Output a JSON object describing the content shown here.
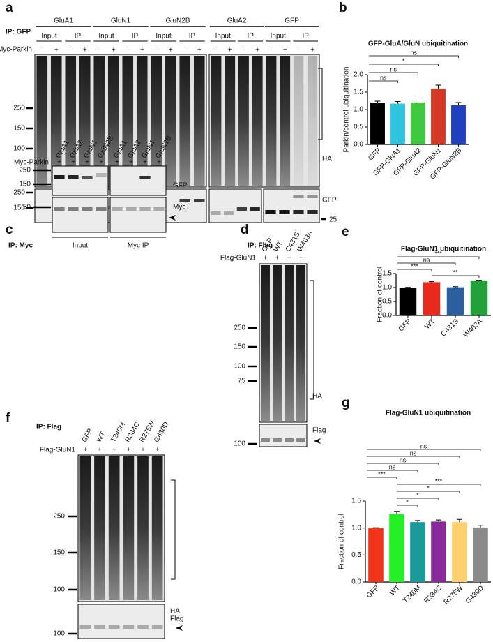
{
  "panel_labels": [
    "a",
    "b",
    "c",
    "d",
    "e",
    "f",
    "g"
  ],
  "blot_a": {
    "ip": "IP: GFP",
    "groups": [
      "GluA1",
      "GluN1",
      "GluN2B",
      "GluA2",
      "GFP"
    ],
    "fractions": [
      "Input",
      "IP",
      "Input",
      "IP",
      "Input",
      "IP",
      "Input",
      "IP",
      "Input",
      "IP"
    ],
    "treatment": "Myc-Parkin",
    "lanes": [
      "-",
      "+",
      "-",
      "+",
      "-",
      "+",
      "-",
      "+",
      "-",
      "+",
      "-",
      "+",
      "-",
      "+",
      "-",
      "+",
      "-",
      "+",
      "-",
      "+"
    ],
    "markers_top": [
      "250",
      "150",
      "100"
    ],
    "markers_bottom": [
      "250",
      "150"
    ],
    "marker_right": "25",
    "labels": [
      "HA",
      "GFP"
    ]
  },
  "blot_c": {
    "ip": "IP: Myc",
    "lanes": [
      "GluA1",
      "GluA2",
      "GluN1",
      "GluN2B",
      "GluA1",
      "GluA2",
      "GluN1",
      "GluN2B"
    ],
    "treatment": "Myc-Parkin",
    "signs": [
      "+",
      "+",
      "+",
      "+",
      "+",
      "+",
      "+",
      "+"
    ],
    "markers": [
      "250",
      "150",
      "50"
    ],
    "labels": [
      "GFP",
      "Myc"
    ],
    "fractions": [
      "Input",
      "Myc IP"
    ]
  },
  "blot_d": {
    "ip": "IP: Flag",
    "lanes": [
      "GFP",
      "WT",
      "C431S",
      "W403A"
    ],
    "treatment": "Flag-GluN1",
    "signs": [
      "+",
      "+",
      "+",
      "+"
    ],
    "markers": [
      "250",
      "150",
      "100",
      "75"
    ],
    "labels": [
      "HA",
      "Flag"
    ],
    "marker_bottom": "100"
  },
  "blot_f": {
    "ip": "IP: Flag",
    "lanes": [
      "GFP",
      "WT",
      "T240M",
      "R334C",
      "R275W",
      "G430D"
    ],
    "treatment": "Flag-GluN1",
    "signs": [
      "+",
      "+",
      "+",
      "+",
      "+",
      "+"
    ],
    "markers": [
      "250",
      "150",
      "100"
    ],
    "labels": [
      "HA",
      "Flag"
    ],
    "marker_bottom": "100"
  },
  "chart_data": [
    {
      "type": "bar",
      "title": "GFP-GluA/GluN ubiquitination",
      "ylabel": "Parkin/control ubiquitination",
      "categories": [
        "GFP",
        "GFP-GluA1",
        "GFP-GluA2",
        "GFP-GluN1",
        "GFP-GluN2B"
      ],
      "values": [
        1.2,
        1.17,
        1.2,
        1.6,
        1.12
      ],
      "errors": [
        0.04,
        0.06,
        0.07,
        0.1,
        0.08
      ],
      "colors": [
        "#000000",
        "#2ec4e0",
        "#3ec93e",
        "#d23a26",
        "#2040c0"
      ],
      "ylim": [
        0,
        2.0
      ],
      "yticks": [
        {
          "value": 0,
          "label": "0.0"
        },
        0.5,
        {
          "value": 1,
          "label": "1.0"
        },
        1.5,
        {
          "value": 2,
          "label": "2.0"
        }
      ],
      "significance": [
        {
          "from": 0,
          "to": 4,
          "label": "ns"
        },
        {
          "from": 0,
          "to": 3,
          "label": "*"
        },
        {
          "from": 0,
          "to": 2,
          "label": "ns"
        },
        {
          "from": 0,
          "to": 1,
          "label": "ns"
        }
      ]
    },
    {
      "type": "bar",
      "title": "Flag-GluN1 ubiquitination",
      "ylabel": "Fraction of control",
      "categories": [
        "GFP",
        "WT",
        "C431S",
        "W403A"
      ],
      "values": [
        1.0,
        1.19,
        1.01,
        1.25
      ],
      "errors": [
        0.005,
        0.02,
        0.02,
        0.01
      ],
      "colors": [
        "#000000",
        "#e8291c",
        "#2a5fa0",
        "#22a03a"
      ],
      "ylim": [
        0,
        1.5
      ],
      "yticks": [
        {
          "value": 0,
          "label": "0.0"
        },
        0.5,
        {
          "value": 1,
          "label": "1.0"
        },
        1.5
      ],
      "significance": [
        {
          "from": 0,
          "to": 3,
          "label": "***"
        },
        {
          "from": 0,
          "to": 2,
          "label": "ns"
        },
        {
          "from": 0,
          "to": 1,
          "label": "***"
        },
        {
          "from": 1,
          "to": 3,
          "label": "**"
        }
      ]
    },
    {
      "type": "bar",
      "title": "Flag-GluN1 ubiquitination",
      "ylabel": "Fraction of control",
      "categories": [
        "GFP",
        "WT",
        "T240M",
        "R334C",
        "R275W",
        "G430D"
      ],
      "values": [
        1.0,
        1.26,
        1.11,
        1.12,
        1.11,
        1.01
      ],
      "errors": [
        0.005,
        0.05,
        0.03,
        0.03,
        0.05,
        0.04
      ],
      "colors": [
        "#f2331a",
        "#22f022",
        "#1a9a9a",
        "#8a2a9a",
        "#ffd070",
        "#8a8a8a"
      ],
      "ylim": [
        0,
        1.5
      ],
      "yticks": [
        {
          "value": 0,
          "label": "0.0"
        },
        0.5,
        {
          "value": 1,
          "label": "1.0"
        },
        1.5
      ],
      "significance": [
        {
          "from": 0,
          "to": 5,
          "label": "ns"
        },
        {
          "from": 0,
          "to": 4,
          "label": "ns"
        },
        {
          "from": 0,
          "to": 3,
          "label": "ns"
        },
        {
          "from": 0,
          "to": 2,
          "label": "ns"
        },
        {
          "from": 0,
          "to": 1,
          "label": "***"
        },
        {
          "from": 1,
          "to": 5,
          "label": "***"
        },
        {
          "from": 1,
          "to": 4,
          "label": "*"
        },
        {
          "from": 1,
          "to": 3,
          "label": "*"
        },
        {
          "from": 1,
          "to": 2,
          "label": "*"
        }
      ]
    }
  ]
}
